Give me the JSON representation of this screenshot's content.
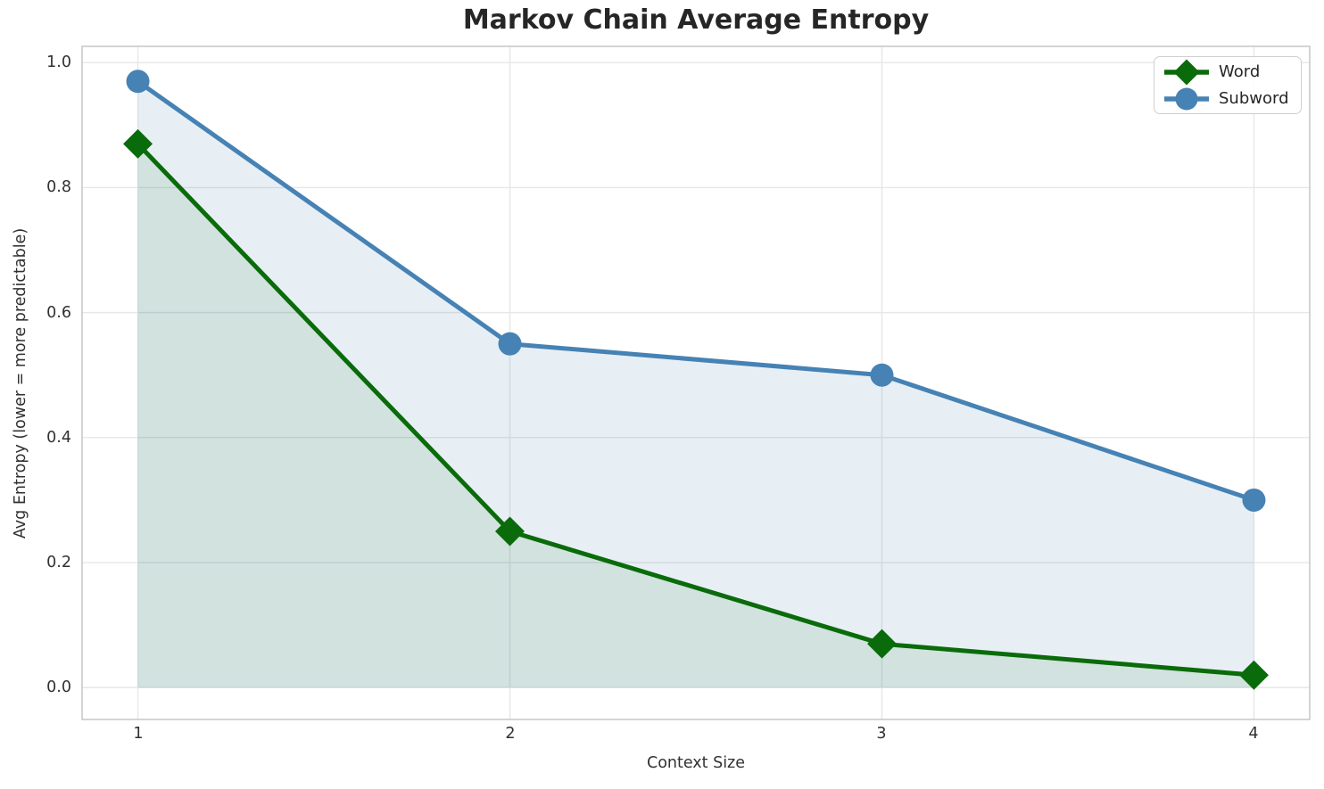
{
  "chart_data": {
    "type": "line",
    "title": "Markov Chain Average Entropy",
    "xlabel": "Context Size",
    "ylabel": "Avg Entropy (lower = more predictable)",
    "x": [
      1,
      2,
      3,
      4
    ],
    "series": [
      {
        "name": "Word",
        "values": [
          0.87,
          0.25,
          0.07,
          0.02
        ],
        "color": "#0a6b0a",
        "marker": "diamond",
        "fill_to_zero": true,
        "fill_opacity": 0.1
      },
      {
        "name": "Subword",
        "values": [
          0.97,
          0.55,
          0.5,
          0.3
        ],
        "color": "#4682b4",
        "marker": "circle",
        "fill_to_zero": true,
        "fill_opacity": 0.13
      }
    ],
    "xticks": [
      1,
      2,
      3,
      4
    ],
    "yticks": [
      "0.0",
      "0.2",
      "0.4",
      "0.6",
      "0.8",
      "1.0"
    ],
    "xlim": [
      0.85,
      4.15
    ],
    "ylim": [
      -0.051,
      1.026
    ],
    "grid": true,
    "grid_color": "#e7e7e7",
    "spine_color": "#c9c9c9",
    "legend_position": "upper right",
    "line_width": 5
  }
}
